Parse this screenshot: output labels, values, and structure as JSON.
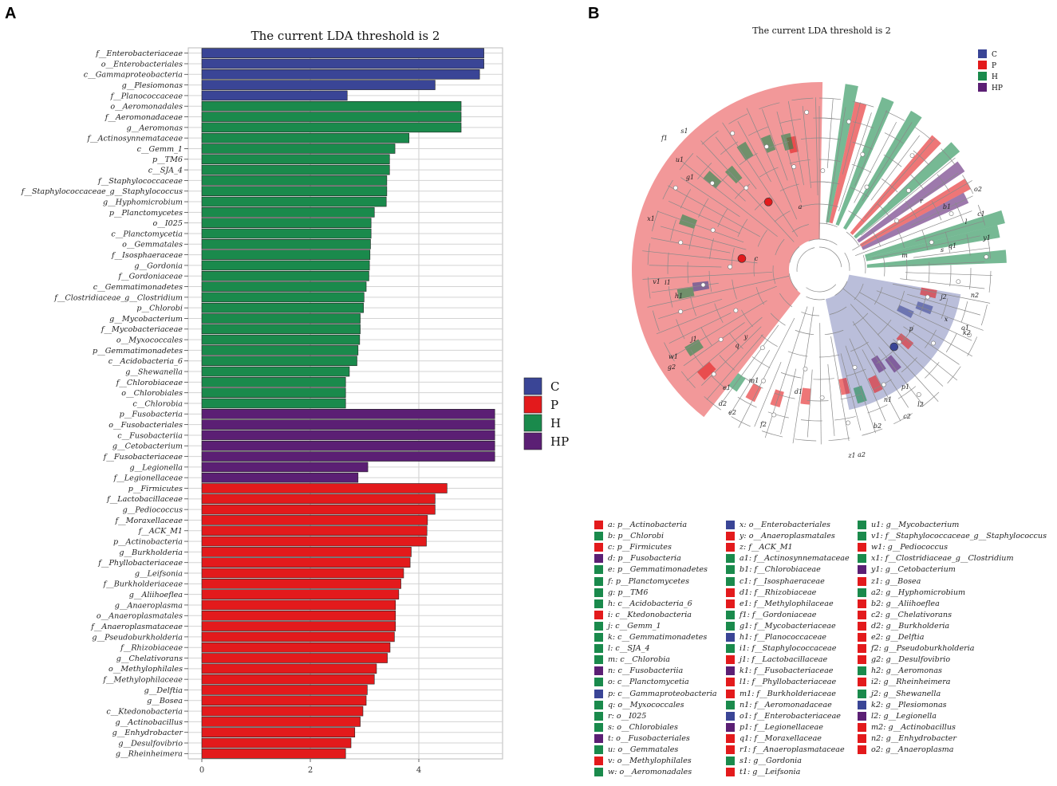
{
  "panels": {
    "a": "A",
    "b": "B"
  },
  "colors": {
    "C": "#3a4596",
    "P": "#e31a1c",
    "H": "#1a8a4c",
    "HP": "#5b1f74"
  },
  "chart_data": [
    {
      "type": "bar",
      "orientation": "horizontal",
      "title": "The current LDA threshold is 2",
      "xlim": [
        0,
        5.5
      ],
      "xticks": [
        0,
        2,
        4
      ],
      "grid": true,
      "legend": {
        "position": "right",
        "entries": [
          "C",
          "P",
          "H",
          "HP"
        ]
      },
      "bars": [
        {
          "label": "f__Enterobacteriaceae",
          "value": 5.2,
          "group": "C"
        },
        {
          "label": "o__Enterobacteriales",
          "value": 5.2,
          "group": "C"
        },
        {
          "label": "c__Gammaproteobacteria",
          "value": 5.12,
          "group": "C"
        },
        {
          "label": "g__Plesiomonas",
          "value": 4.3,
          "group": "C"
        },
        {
          "label": "f__Planococcaceae",
          "value": 2.68,
          "group": "C"
        },
        {
          "label": "o__Aeromonadales",
          "value": 4.78,
          "group": "H"
        },
        {
          "label": "f__Aeromonadaceae",
          "value": 4.78,
          "group": "H"
        },
        {
          "label": "g__Aeromonas",
          "value": 4.78,
          "group": "H"
        },
        {
          "label": "f__Actinosynnemataceae",
          "value": 3.82,
          "group": "H"
        },
        {
          "label": "c__Gemm_1",
          "value": 3.56,
          "group": "H"
        },
        {
          "label": "p__TM6",
          "value": 3.46,
          "group": "H"
        },
        {
          "label": "c__SJA_4",
          "value": 3.46,
          "group": "H"
        },
        {
          "label": "f__Staphylococcaceae",
          "value": 3.41,
          "group": "H"
        },
        {
          "label": "f__Staphylococcaceae_g__Staphylococcus",
          "value": 3.41,
          "group": "H"
        },
        {
          "label": "g__Hyphomicrobium",
          "value": 3.4,
          "group": "H"
        },
        {
          "label": "p__Planctomycetes",
          "value": 3.18,
          "group": "H"
        },
        {
          "label": "o__I025",
          "value": 3.12,
          "group": "H"
        },
        {
          "label": "c__Planctomycetia",
          "value": 3.12,
          "group": "H"
        },
        {
          "label": "o__Gemmatales",
          "value": 3.11,
          "group": "H"
        },
        {
          "label": "f__Isosphaeraceae",
          "value": 3.1,
          "group": "H"
        },
        {
          "label": "g__Gordonia",
          "value": 3.09,
          "group": "H"
        },
        {
          "label": "f__Gordoniaceae",
          "value": 3.08,
          "group": "H"
        },
        {
          "label": "c__Gemmatimonadetes",
          "value": 3.03,
          "group": "H"
        },
        {
          "label": "f__Clostridiaceae_g__Clostridium",
          "value": 2.99,
          "group": "H"
        },
        {
          "label": "p__Chlorobi",
          "value": 2.98,
          "group": "H"
        },
        {
          "label": "g__Mycobacterium",
          "value": 2.92,
          "group": "H"
        },
        {
          "label": "f__Mycobacteriaceae",
          "value": 2.92,
          "group": "H"
        },
        {
          "label": "o__Myxococcales",
          "value": 2.91,
          "group": "H"
        },
        {
          "label": "p__Gemmatimonadetes",
          "value": 2.88,
          "group": "H"
        },
        {
          "label": "c__Acidobacteria_6",
          "value": 2.86,
          "group": "H"
        },
        {
          "label": "g__Shewanella",
          "value": 2.72,
          "group": "H"
        },
        {
          "label": "f__Chlorobiaceae",
          "value": 2.65,
          "group": "H"
        },
        {
          "label": "o__Chlorobiales",
          "value": 2.65,
          "group": "H"
        },
        {
          "label": "c__Chlorobia",
          "value": 2.65,
          "group": "H"
        },
        {
          "label": "p__Fusobacteria",
          "value": 5.4,
          "group": "HP"
        },
        {
          "label": "o__Fusobacteriales",
          "value": 5.4,
          "group": "HP"
        },
        {
          "label": "c__Fusobacteriia",
          "value": 5.4,
          "group": "HP"
        },
        {
          "label": "g__Cetobacterium",
          "value": 5.4,
          "group": "HP"
        },
        {
          "label": "f__Fusobacteriaceae",
          "value": 5.4,
          "group": "HP"
        },
        {
          "label": "g__Legionella",
          "value": 3.06,
          "group": "HP"
        },
        {
          "label": "f__Legionellaceae",
          "value": 2.88,
          "group": "HP"
        },
        {
          "label": "p__Firmicutes",
          "value": 4.52,
          "group": "P"
        },
        {
          "label": "f__Lactobacillaceae",
          "value": 4.3,
          "group": "P"
        },
        {
          "label": "g__Pediococcus",
          "value": 4.3,
          "group": "P"
        },
        {
          "label": "f__Moraxellaceae",
          "value": 4.16,
          "group": "P"
        },
        {
          "label": "f__ACK_M1",
          "value": 4.15,
          "group": "P"
        },
        {
          "label": "p__Actinobacteria",
          "value": 4.14,
          "group": "P"
        },
        {
          "label": "g__Burkholderia",
          "value": 3.86,
          "group": "P"
        },
        {
          "label": "f__Phyllobacteriaceae",
          "value": 3.84,
          "group": "P"
        },
        {
          "label": "g__Leifsonia",
          "value": 3.72,
          "group": "P"
        },
        {
          "label": "f__Burkholderiaceae",
          "value": 3.67,
          "group": "P"
        },
        {
          "label": "g__Aliihoeflea",
          "value": 3.63,
          "group": "P"
        },
        {
          "label": "g__Anaeroplasma",
          "value": 3.57,
          "group": "P"
        },
        {
          "label": "o__Anaeroplasmatales",
          "value": 3.57,
          "group": "P"
        },
        {
          "label": "f__Anaeroplasmataceae",
          "value": 3.57,
          "group": "P"
        },
        {
          "label": "g__Pseudoburkholderia",
          "value": 3.55,
          "group": "P"
        },
        {
          "label": "f__Rhizobiaceae",
          "value": 3.47,
          "group": "P"
        },
        {
          "label": "g__Chelativorans",
          "value": 3.42,
          "group": "P"
        },
        {
          "label": "o__Methylophilales",
          "value": 3.22,
          "group": "P"
        },
        {
          "label": "f__Methylophilaceae",
          "value": 3.18,
          "group": "P"
        },
        {
          "label": "g__Delftia",
          "value": 3.05,
          "group": "P"
        },
        {
          "label": "g__Bosea",
          "value": 3.03,
          "group": "P"
        },
        {
          "label": "c__Ktedonobacteria",
          "value": 2.97,
          "group": "P"
        },
        {
          "label": "g__Actinobacillus",
          "value": 2.92,
          "group": "P"
        },
        {
          "label": "g__Enhydrobacter",
          "value": 2.82,
          "group": "P"
        },
        {
          "label": "g__Desulfovibrio",
          "value": 2.75,
          "group": "P"
        },
        {
          "label": "g__Rheinheimera",
          "value": 2.65,
          "group": "P"
        }
      ]
    },
    {
      "type": "cladogram",
      "title": "The current LDA threshold is 2",
      "legend": {
        "position": "top-right",
        "entries": [
          "C",
          "P",
          "H",
          "HP"
        ]
      },
      "node_labels": [
        "a",
        "c",
        "x1",
        "f1",
        "u1",
        "g1",
        "s1",
        "e1",
        "v1",
        "i1",
        "h1",
        "w1",
        "j1",
        "g2",
        "q",
        "y",
        "d1",
        "m1",
        "d2",
        "e2",
        "f2",
        "z1",
        "a2",
        "b2",
        "c2",
        "l2",
        "n1",
        "p1",
        "p",
        "k2",
        "n2",
        "o1",
        "x",
        "j2",
        "q1",
        "b1",
        "l",
        "y1",
        "c1",
        "r",
        "o2",
        "m",
        "s"
      ],
      "taxa": [
        {
          "key": "a",
          "name": "p__Actinobacteria",
          "group": "P"
        },
        {
          "key": "b",
          "name": "p__Chlorobi",
          "group": "H"
        },
        {
          "key": "c",
          "name": "p__Firmicutes",
          "group": "P"
        },
        {
          "key": "d",
          "name": "p__Fusobacteria",
          "group": "HP"
        },
        {
          "key": "e",
          "name": "p__Gemmatimonadetes",
          "group": "H"
        },
        {
          "key": "f",
          "name": "p__Planctomycetes",
          "group": "H"
        },
        {
          "key": "g",
          "name": "p__TM6",
          "group": "H"
        },
        {
          "key": "h",
          "name": "c__Acidobacteria_6",
          "group": "H"
        },
        {
          "key": "i",
          "name": "c__Ktedonobacteria",
          "group": "P"
        },
        {
          "key": "j",
          "name": "c__Gemm_1",
          "group": "H"
        },
        {
          "key": "k",
          "name": "c__Gemmatimonadetes",
          "group": "H"
        },
        {
          "key": "l",
          "name": "c__SJA_4",
          "group": "H"
        },
        {
          "key": "m",
          "name": "c__Chlorobia",
          "group": "H"
        },
        {
          "key": "n",
          "name": "c__Fusobacteriia",
          "group": "HP"
        },
        {
          "key": "o",
          "name": "c__Planctomycetia",
          "group": "H"
        },
        {
          "key": "p",
          "name": "c__Gammaproteobacteria",
          "group": "C"
        },
        {
          "key": "q",
          "name": "o__Myxococcales",
          "group": "H"
        },
        {
          "key": "r",
          "name": "o__I025",
          "group": "H"
        },
        {
          "key": "s",
          "name": "o__Chlorobiales",
          "group": "H"
        },
        {
          "key": "t",
          "name": "o__Fusobacteriales",
          "group": "HP"
        },
        {
          "key": "u",
          "name": "o__Gemmatales",
          "group": "H"
        },
        {
          "key": "v",
          "name": "o__Methylophilales",
          "group": "P"
        },
        {
          "key": "w",
          "name": "o__Aeromonadales",
          "group": "H"
        },
        {
          "key": "x",
          "name": "o__Enterobacteriales",
          "group": "C"
        },
        {
          "key": "y",
          "name": "o__Anaeroplasmatales",
          "group": "P"
        },
        {
          "key": "z",
          "name": "f__ACK_M1",
          "group": "P"
        },
        {
          "key": "a1",
          "name": "f__Actinosynnemataceae",
          "group": "H"
        },
        {
          "key": "b1",
          "name": "f__Chlorobiaceae",
          "group": "H"
        },
        {
          "key": "c1",
          "name": "f__Isosphaeraceae",
          "group": "H"
        },
        {
          "key": "d1",
          "name": "f__Rhizobiaceae",
          "group": "P"
        },
        {
          "key": "e1",
          "name": "f__Methylophilaceae",
          "group": "P"
        },
        {
          "key": "f1",
          "name": "f__Gordoniaceae",
          "group": "H"
        },
        {
          "key": "g1",
          "name": "f__Mycobacteriaceae",
          "group": "H"
        },
        {
          "key": "h1",
          "name": "f__Planococcaceae",
          "group": "C"
        },
        {
          "key": "i1",
          "name": "f__Staphylococcaceae",
          "group": "H"
        },
        {
          "key": "j1",
          "name": "f__Lactobacillaceae",
          "group": "P"
        },
        {
          "key": "k1",
          "name": "f__Fusobacteriaceae",
          "group": "HP"
        },
        {
          "key": "l1",
          "name": "f__Phyllobacteriaceae",
          "group": "P"
        },
        {
          "key": "m1",
          "name": "f__Burkholderiaceae",
          "group": "P"
        },
        {
          "key": "n1",
          "name": "f__Aeromonadaceae",
          "group": "H"
        },
        {
          "key": "o1",
          "name": "f__Enterobacteriaceae",
          "group": "C"
        },
        {
          "key": "p1",
          "name": "f__Legionellaceae",
          "group": "HP"
        },
        {
          "key": "q1",
          "name": "f__Moraxellaceae",
          "group": "P"
        },
        {
          "key": "r1",
          "name": "f__Anaeroplasmataceae",
          "group": "P"
        },
        {
          "key": "s1",
          "name": "g__Gordonia",
          "group": "H"
        },
        {
          "key": "t1",
          "name": "g__Leifsonia",
          "group": "P"
        },
        {
          "key": "u1",
          "name": "g__Mycobacterium",
          "group": "H"
        },
        {
          "key": "v1",
          "name": "f__Staphylococcaceae_g__Staphylococcus",
          "group": "H"
        },
        {
          "key": "w1",
          "name": "g__Pediococcus",
          "group": "P"
        },
        {
          "key": "x1",
          "name": "f__Clostridiaceae_g__Clostridium",
          "group": "H"
        },
        {
          "key": "y1",
          "name": "g__Cetobacterium",
          "group": "HP"
        },
        {
          "key": "z1",
          "name": "g__Bosea",
          "group": "P"
        },
        {
          "key": "a2",
          "name": "g__Hyphomicrobium",
          "group": "H"
        },
        {
          "key": "b2",
          "name": "g__Aliihoeflea",
          "group": "P"
        },
        {
          "key": "c2",
          "name": "g__Chelativorans",
          "group": "P"
        },
        {
          "key": "d2",
          "name": "g__Burkholderia",
          "group": "P"
        },
        {
          "key": "e2",
          "name": "g__Delftia",
          "group": "P"
        },
        {
          "key": "f2",
          "name": "g__Pseudoburkholderia",
          "group": "P"
        },
        {
          "key": "g2",
          "name": "g__Desulfovibrio",
          "group": "P"
        },
        {
          "key": "h2",
          "name": "g__Aeromonas",
          "group": "H"
        },
        {
          "key": "i2",
          "name": "g__Rheinheimera",
          "group": "P"
        },
        {
          "key": "j2",
          "name": "g__Shewanella",
          "group": "H"
        },
        {
          "key": "k2",
          "name": "g__Plesiomonas",
          "group": "C"
        },
        {
          "key": "l2",
          "name": "g__Legionella",
          "group": "HP"
        },
        {
          "key": "m2",
          "name": "g__Actinobacillus",
          "group": "P"
        },
        {
          "key": "n2",
          "name": "g__Enhydrobacter",
          "group": "P"
        },
        {
          "key": "o2",
          "name": "g__Anaeroplasma",
          "group": "P"
        }
      ]
    }
  ]
}
